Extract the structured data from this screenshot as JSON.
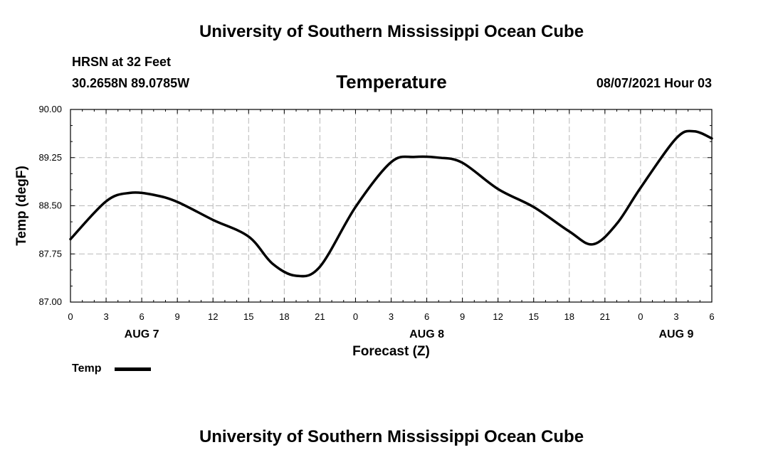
{
  "header": {
    "title_top": "University of Southern Mississippi Ocean Cube",
    "station": "HRSN at 32 Feet",
    "coords": "30.2658N  89.0785W",
    "chart_title": "Temperature",
    "timestamp": "08/07/2021 Hour 03"
  },
  "footer": {
    "title_bottom": "University of Southern Mississippi Ocean Cube"
  },
  "legend": {
    "label": "Temp"
  },
  "chart_data": {
    "type": "line",
    "title": "Temperature",
    "xlabel": "Forecast (Z)",
    "ylabel": "Temp (degF)",
    "ylim": [
      87.0,
      90.0
    ],
    "xlim": [
      0,
      54
    ],
    "grid": true,
    "legend_position": "bottom-left",
    "yticks": [
      "87.00",
      "87.75",
      "88.50",
      "89.25",
      "90.00"
    ],
    "xticks": [
      "0",
      "3",
      "6",
      "9",
      "12",
      "15",
      "18",
      "21",
      "0",
      "3",
      "6",
      "9",
      "12",
      "15",
      "18",
      "21",
      "0",
      "3",
      "6"
    ],
    "date_labels": [
      {
        "label": "AUG 7",
        "hour": 6
      },
      {
        "label": "AUG 8",
        "hour": 30
      },
      {
        "label": "AUG 9",
        "hour": 51
      }
    ],
    "series": [
      {
        "name": "Temp",
        "color": "#000000",
        "x": [
          0,
          3,
          5,
          7,
          9,
          12,
          15,
          17,
          19,
          21,
          24,
          27,
          29,
          31,
          33,
          36,
          39,
          42,
          44,
          46,
          48,
          51,
          52.5,
          54
        ],
        "y": [
          87.98,
          88.57,
          88.7,
          88.67,
          88.56,
          88.28,
          88.02,
          87.6,
          87.41,
          87.55,
          88.48,
          89.18,
          89.26,
          89.25,
          89.17,
          88.76,
          88.48,
          88.1,
          87.9,
          88.22,
          88.78,
          89.55,
          89.66,
          89.55
        ]
      }
    ]
  }
}
